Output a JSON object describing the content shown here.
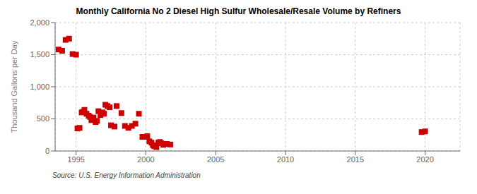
{
  "chart_data": {
    "type": "scatter",
    "title": "Monthly California No 2 Diesel High Sulfur Wholesale/Resale Volume by Refiners",
    "ylabel": "Thousand Gallons per Day",
    "source": "Source: U.S. Energy Information Administration",
    "color": "#cc0000",
    "marker": "square",
    "grid": true,
    "xlim": [
      1993.5,
      2022.5
    ],
    "xticks": [
      1995,
      2000,
      2005,
      2010,
      2015,
      2020
    ],
    "ylim": [
      0,
      2000
    ],
    "yticks": [
      0,
      500,
      {
        "value": 1000,
        "label": "1,000"
      },
      {
        "value": 1500,
        "label": "1,500"
      },
      {
        "value": 2000,
        "label": "2,000"
      }
    ],
    "x": [
      1993.75,
      1994.0,
      1994.25,
      1994.5,
      1994.75,
      1995.0,
      1995.1,
      1995.25,
      1995.4,
      1995.5,
      1995.6,
      1995.75,
      1995.9,
      1996.0,
      1996.1,
      1996.25,
      1996.4,
      1996.5,
      1996.6,
      1996.75,
      1996.9,
      1997.0,
      1997.1,
      1997.25,
      1997.4,
      1997.5,
      1997.75,
      1997.9,
      1998.25,
      1998.5,
      1998.75,
      1999.0,
      1999.25,
      1999.5,
      1999.75,
      2000.0,
      2000.1,
      2000.25,
      2000.4,
      2000.5,
      2000.6,
      2000.75,
      2000.9,
      2001.0,
      2001.1,
      2001.25,
      2001.5,
      2001.75,
      2019.75,
      2020.0
    ],
    "values": [
      1580,
      1560,
      1730,
      1750,
      1510,
      1500,
      350,
      360,
      600,
      610,
      640,
      580,
      550,
      530,
      480,
      520,
      450,
      470,
      620,
      560,
      600,
      580,
      720,
      700,
      680,
      400,
      380,
      700,
      590,
      390,
      360,
      390,
      425,
      580,
      220,
      220,
      230,
      150,
      130,
      90,
      75,
      60,
      130,
      140,
      120,
      95,
      110,
      100,
      295,
      305
    ]
  }
}
